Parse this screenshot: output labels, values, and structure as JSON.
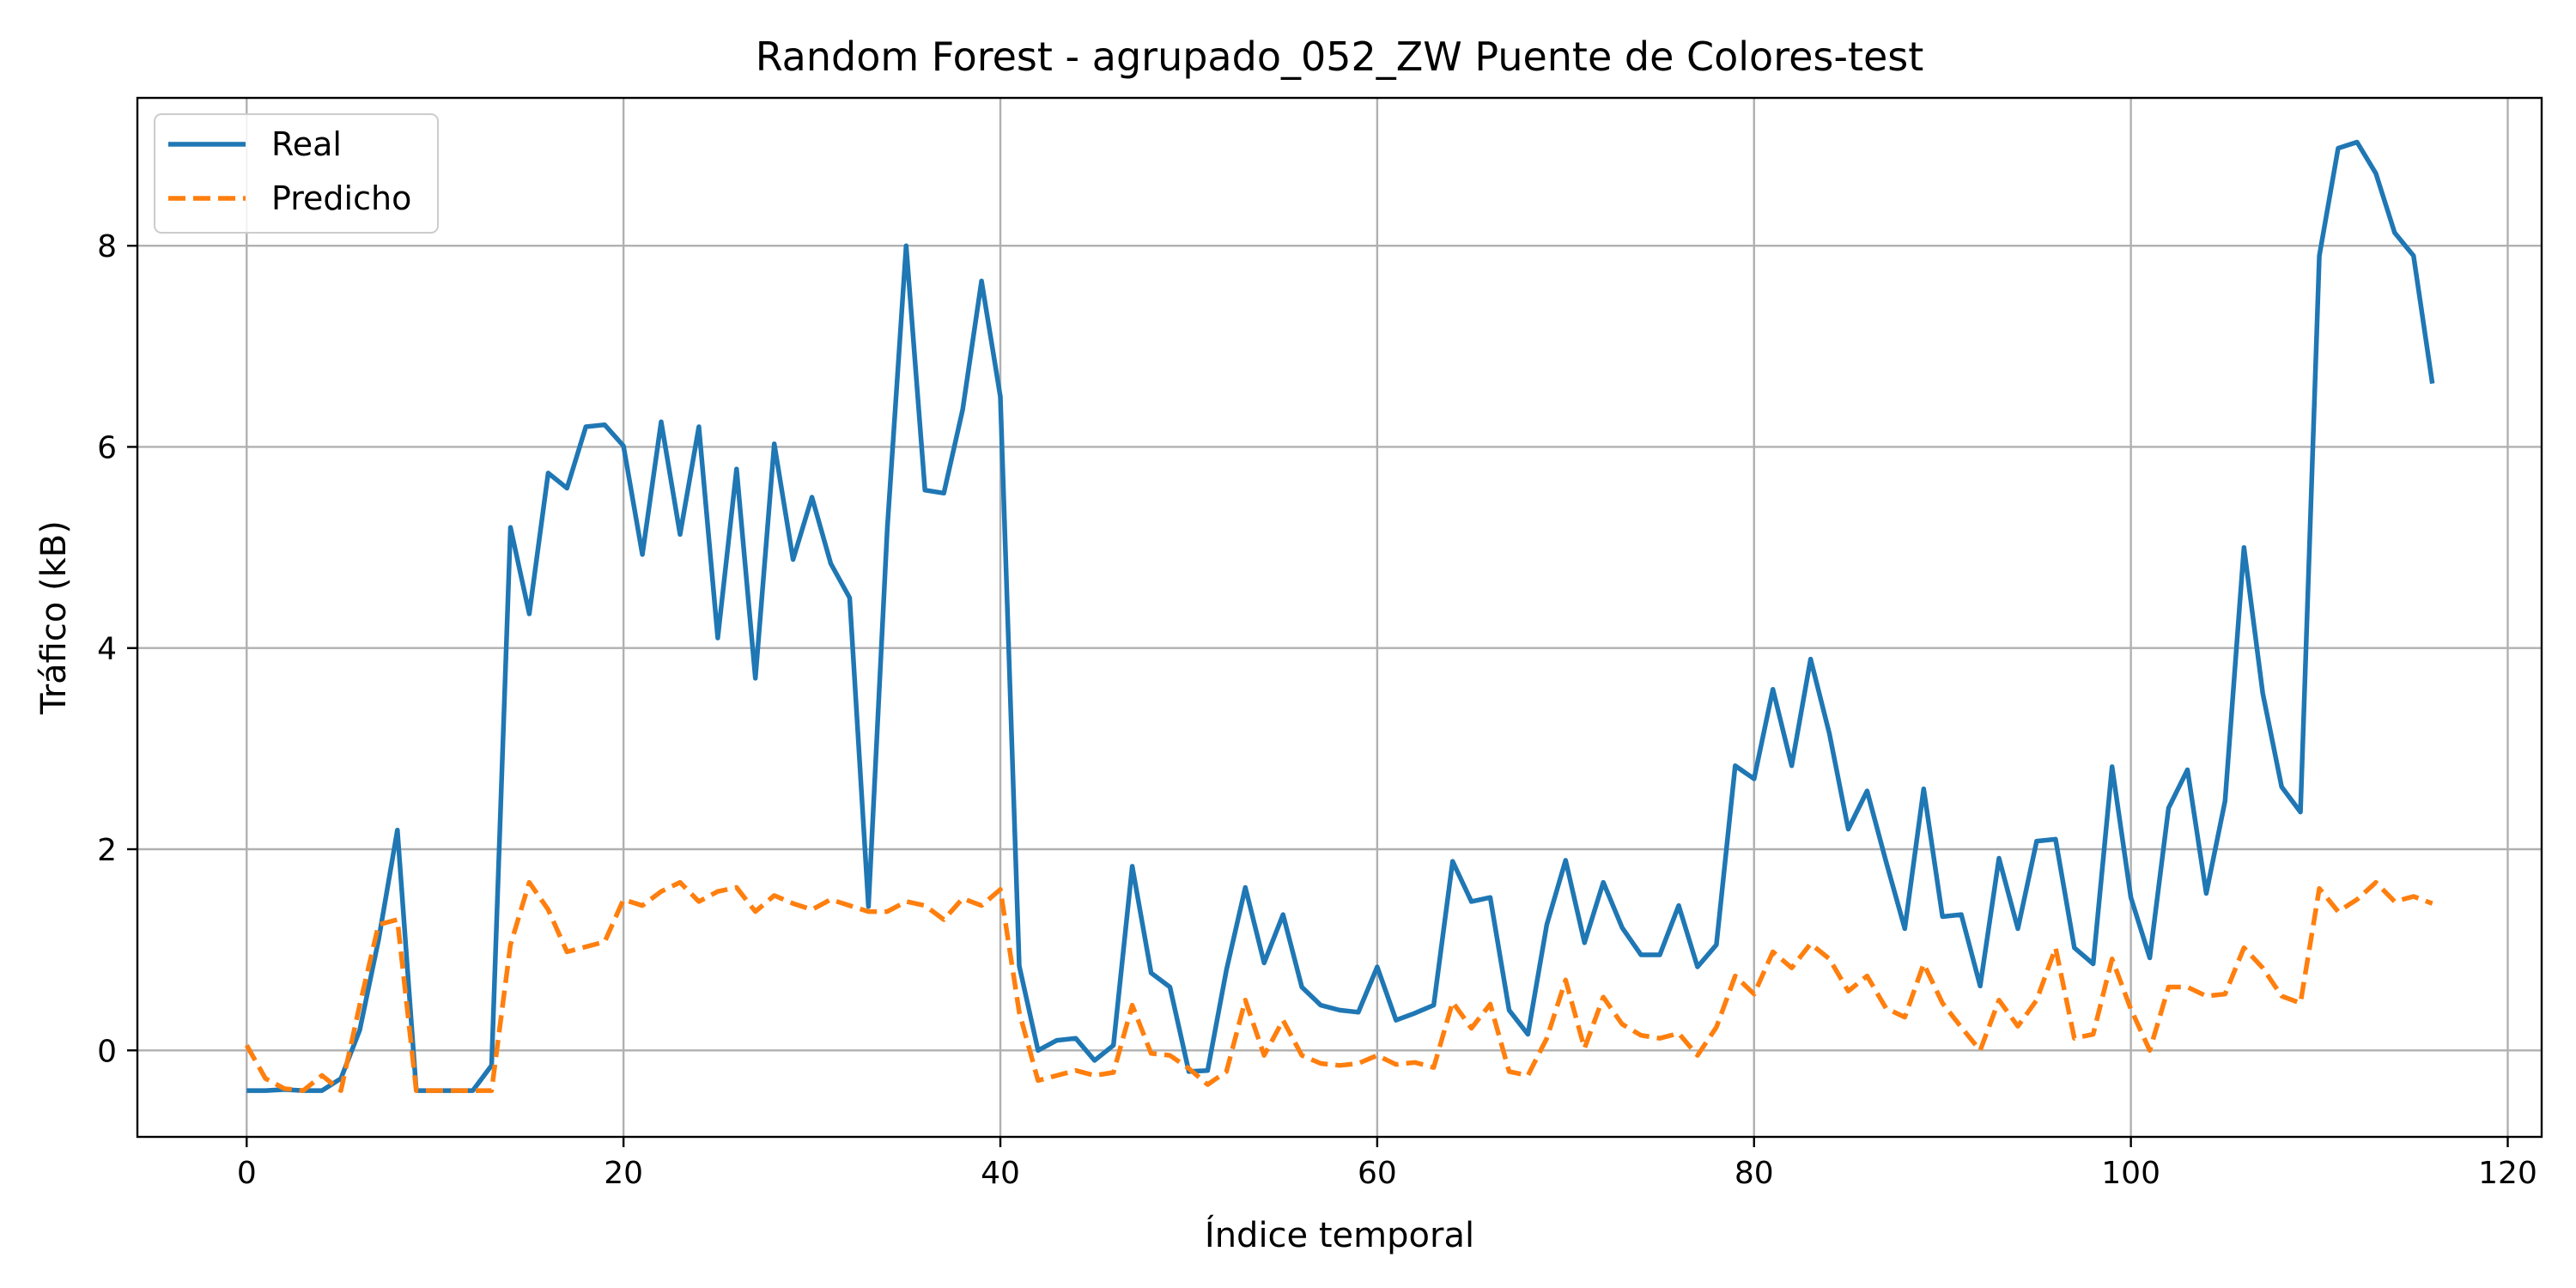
{
  "chart_data": {
    "type": "line",
    "title": "Random Forest - agrupado_052_ZW Puente de Colores-test",
    "xlabel": "Índice temporal",
    "ylabel": "Tráfico (kB)",
    "xlim": [
      -5.8,
      121.8
    ],
    "ylim": [
      -0.86,
      9.47
    ],
    "xticks": [
      0,
      20,
      40,
      60,
      80,
      100,
      120
    ],
    "yticks": [
      0,
      2,
      4,
      6,
      8
    ],
    "grid": true,
    "legend": "top-left",
    "series": [
      {
        "name": "Real",
        "color": "#1f77b4",
        "style": "solid",
        "values": [
          -0.4,
          -0.4,
          -0.39,
          -0.4,
          -0.4,
          -0.28,
          0.2,
          1.1,
          2.19,
          -0.4,
          -0.4,
          -0.4,
          -0.4,
          -0.15,
          5.2,
          4.34,
          5.74,
          5.59,
          6.2,
          6.22,
          6.01,
          4.93,
          6.25,
          5.13,
          6.2,
          4.1,
          5.78,
          3.7,
          6.03,
          4.88,
          5.5,
          4.84,
          4.5,
          1.43,
          5.2,
          8.0,
          5.57,
          5.54,
          6.37,
          7.65,
          6.5,
          0.84,
          0.0,
          0.1,
          0.12,
          -0.1,
          0.05,
          1.83,
          0.77,
          0.63,
          -0.21,
          -0.2,
          0.8,
          1.62,
          0.87,
          1.35,
          0.63,
          0.45,
          0.4,
          0.38,
          0.83,
          0.3,
          0.37,
          0.45,
          1.88,
          1.48,
          1.52,
          0.4,
          0.16,
          1.25,
          1.89,
          1.07,
          1.67,
          1.22,
          0.95,
          0.95,
          1.44,
          0.83,
          1.05,
          2.83,
          2.7,
          3.59,
          2.83,
          3.89,
          3.15,
          2.2,
          2.58,
          1.88,
          1.21,
          2.6,
          1.33,
          1.35,
          0.64,
          1.91,
          1.21,
          2.08,
          2.1,
          1.02,
          0.86,
          2.82,
          1.52,
          0.92,
          2.41,
          2.79,
          1.56,
          2.48,
          5.0,
          3.55,
          2.62,
          2.37,
          7.9,
          8.97,
          9.03,
          8.72,
          8.13,
          7.9,
          6.63
        ]
      },
      {
        "name": "Predicho",
        "color": "#ff7f0e",
        "style": "dashed",
        "values": [
          0.05,
          -0.28,
          -0.38,
          -0.4,
          -0.25,
          -0.4,
          0.45,
          1.25,
          1.3,
          -0.4,
          -0.4,
          -0.4,
          -0.4,
          -0.4,
          1.05,
          1.67,
          1.4,
          0.98,
          1.03,
          1.08,
          1.5,
          1.44,
          1.58,
          1.67,
          1.48,
          1.58,
          1.62,
          1.38,
          1.54,
          1.46,
          1.4,
          1.5,
          1.44,
          1.38,
          1.38,
          1.48,
          1.44,
          1.3,
          1.51,
          1.44,
          1.6,
          0.38,
          -0.3,
          -0.25,
          -0.2,
          -0.25,
          -0.22,
          0.45,
          -0.03,
          -0.05,
          -0.18,
          -0.34,
          -0.21,
          0.5,
          -0.05,
          0.3,
          -0.05,
          -0.13,
          -0.15,
          -0.13,
          -0.05,
          -0.14,
          -0.12,
          -0.17,
          0.48,
          0.22,
          0.46,
          -0.21,
          -0.25,
          0.12,
          0.7,
          0.02,
          0.53,
          0.26,
          0.15,
          0.12,
          0.17,
          -0.05,
          0.23,
          0.74,
          0.56,
          0.98,
          0.82,
          1.06,
          0.91,
          0.59,
          0.74,
          0.42,
          0.33,
          0.86,
          0.47,
          0.23,
          0.0,
          0.5,
          0.24,
          0.5,
          1.02,
          0.12,
          0.16,
          0.91,
          0.41,
          0.0,
          0.63,
          0.63,
          0.54,
          0.56,
          1.02,
          0.82,
          0.54,
          0.47,
          1.61,
          1.38,
          1.5,
          1.67,
          1.48,
          1.53,
          1.46
        ]
      }
    ]
  }
}
